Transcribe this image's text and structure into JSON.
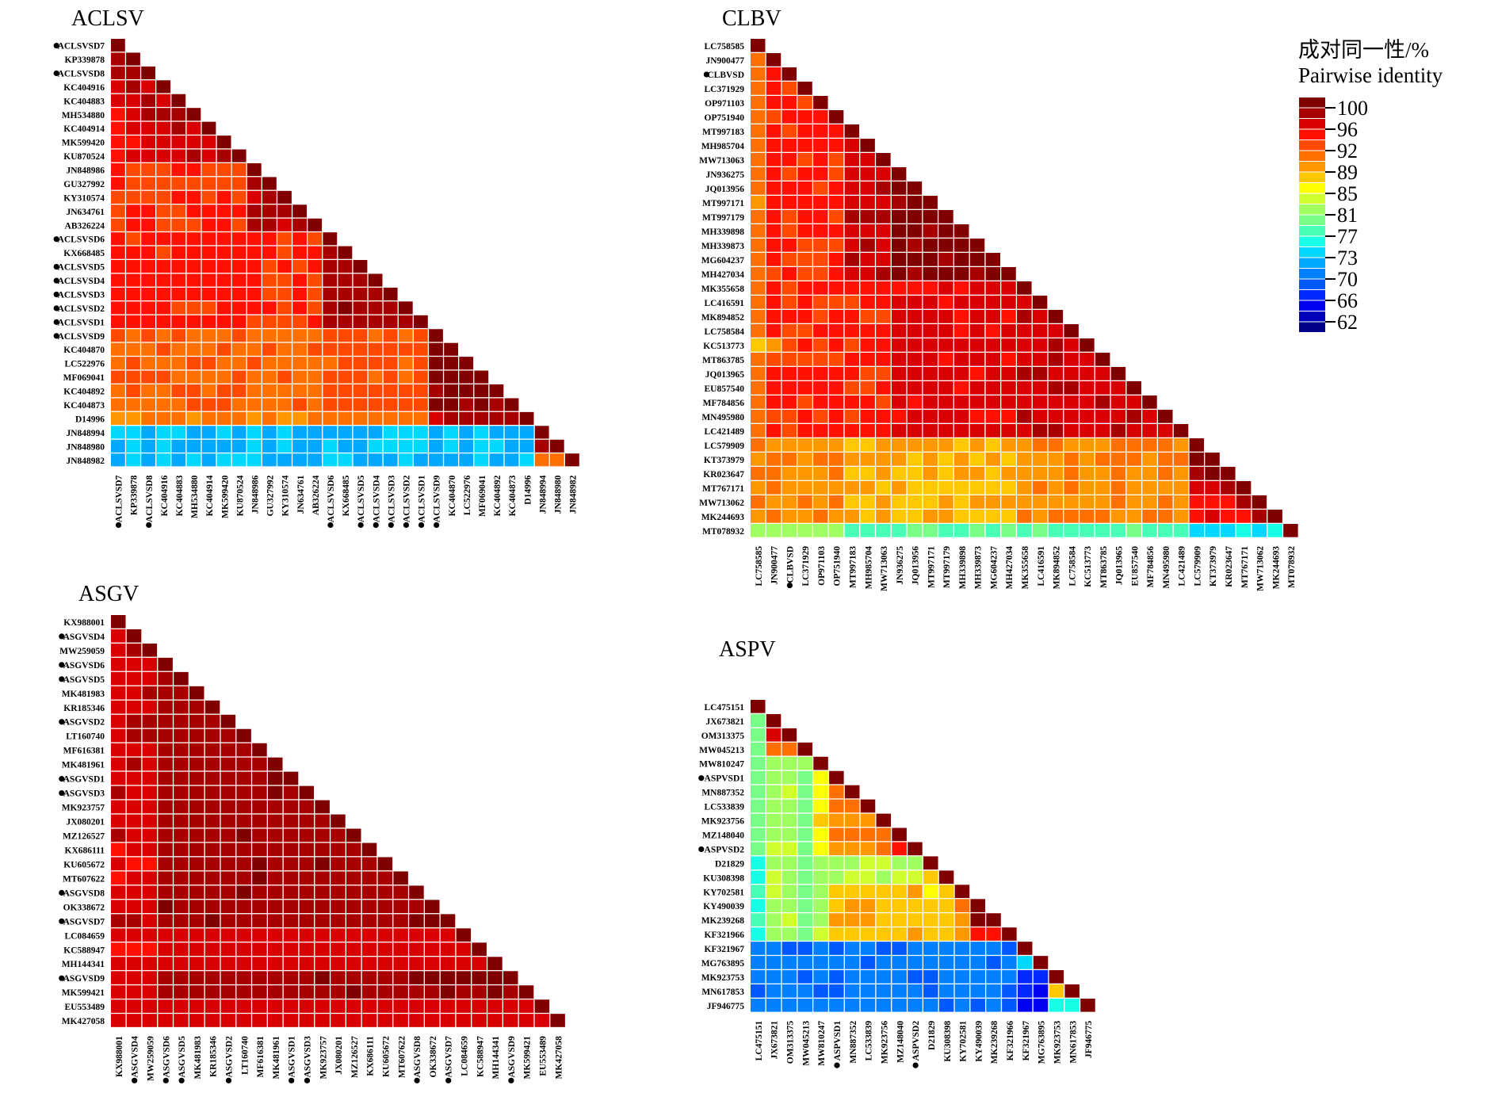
{
  "legend": {
    "title_cn": "成对同一性/%",
    "title_en": "Pairwise identity",
    "ticks": [
      "100",
      "96",
      "92",
      "89",
      "85",
      "81",
      "77",
      "73",
      "70",
      "66",
      "62"
    ],
    "colors": [
      "#800000",
      "#a80000",
      "#d80000",
      "#ff1000",
      "#ff4800",
      "#ff7000",
      "#ff9800",
      "#ffc800",
      "#ffff00",
      "#d0ff30",
      "#a0ff60",
      "#78ff88",
      "#48ffb8",
      "#18ffe8",
      "#00d8ff",
      "#00a8ff",
      "#0080ff",
      "#0058ff",
      "#0028ff",
      "#0000f0",
      "#0000b8",
      "#000088"
    ],
    "min": 60.5,
    "max": 100
  },
  "chart_data": [
    {
      "type": "heatmap",
      "title": "ACLSV",
      "labels": [
        "ACLSVSD7",
        "KP339878",
        "ACLSVSD8",
        "KC404916",
        "KC404883",
        "MH534880",
        "KC404914",
        "MK599420",
        "KU870524",
        "JN848986",
        "GU327992",
        "KY310574",
        "JN634761",
        "AB326224",
        "ACLSVSD6",
        "KX668485",
        "ACLSVSD5",
        "ACLSVSD4",
        "ACLSVSD3",
        "ACLSVSD2",
        "ACLSVSD1",
        "ACLSVSD9",
        "KC404870",
        "LC522976",
        "MF069041",
        "KC404892",
        "KC404873",
        "D14996",
        "JN848994",
        "JN848980",
        "JN848982"
      ],
      "marked": [
        "ACLSVSD7",
        "ACLSVSD8",
        "ACLSVSD6",
        "ACLSVSD5",
        "ACLSVSD4",
        "ACLSVSD3",
        "ACLSVSD2",
        "ACLSVSD1",
        "ACLSVSD9"
      ],
      "blocks": [
        [
          0,
          9,
          98
        ],
        [
          9,
          14,
          93
        ],
        [
          14,
          21,
          94
        ],
        [
          21,
          28,
          91
        ],
        [
          28,
          31,
          73
        ]
      ],
      "between": [
        [
          1,
          0,
          96
        ],
        [
          2,
          0,
          93
        ],
        [
          2,
          1,
          92
        ],
        [
          3,
          0,
          91
        ],
        [
          3,
          1,
          90
        ],
        [
          3,
          2,
          91
        ],
        [
          4,
          0,
          93
        ],
        [
          4,
          1,
          92
        ],
        [
          4,
          2,
          93
        ],
        [
          4,
          3,
          91
        ],
        [
          4,
          4,
          98
        ]
      ],
      "value_range": [
        60.5,
        100
      ]
    },
    {
      "type": "heatmap",
      "title": "CLBV",
      "labels": [
        "LC758585",
        "JN900477",
        "CLBVSD",
        "LC371929",
        "OP971103",
        "OP751940",
        "MT997183",
        "MH985704",
        "MW713063",
        "JN936275",
        "JQ013956",
        "MT997171",
        "MT997179",
        "MH339898",
        "MH339873",
        "MG604237",
        "MH427034",
        "MK355658",
        "LC416591",
        "MK894852",
        "LC758584",
        "KC513773",
        "MT863785",
        "JQ013965",
        "EU857540",
        "MF784856",
        "MN495980",
        "LC421489",
        "LC579909",
        "KT373979",
        "KR023647",
        "MT767171",
        "MW713062",
        "MK244693",
        "MT078932"
      ],
      "marked": [
        "CLBVSD"
      ],
      "value_range": [
        60.5,
        100
      ]
    },
    {
      "type": "heatmap",
      "title": "ASGV",
      "labels": [
        "KX988001",
        "ASGVSD4",
        "MW259059",
        "ASGVSD6",
        "ASGVSD5",
        "MK481983",
        "KR185346",
        "ASGVSD2",
        "LT160740",
        "MF616381",
        "MK481961",
        "ASGVSD1",
        "ASGVSD3",
        "MK923757",
        "JX080201",
        "MZ126527",
        "KX686111",
        "KU605672",
        "MT607622",
        "ASGVSD8",
        "OK338672",
        "ASGVSD7",
        "LC084659",
        "KC588947",
        "MH144341",
        "ASGVSD9",
        "MK599421",
        "EU553489",
        "MK427058"
      ],
      "marked": [
        "ASGVSD4",
        "ASGVSD6",
        "ASGVSD5",
        "ASGVSD2",
        "ASGVSD1",
        "ASGVSD3",
        "ASGVSD8",
        "ASGVSD7",
        "ASGVSD9"
      ],
      "value_range": [
        60.5,
        100
      ]
    },
    {
      "type": "heatmap",
      "title": "ASPV",
      "labels": [
        "LC475151",
        "JX673821",
        "OM313375",
        "MW045213",
        "MW810247",
        "ASPVSD1",
        "MN887352",
        "LC533839",
        "MK923756",
        "MZ148040",
        "ASPVSD2",
        "D21829",
        "KU308398",
        "KY702581",
        "KY490039",
        "MK239268",
        "KF321966",
        "KF321967",
        "MG763895",
        "MK923753",
        "MN617853",
        "JF946775"
      ],
      "marked": [
        "ASPVSD1",
        "ASPVSD2"
      ],
      "value_range": [
        60.5,
        100
      ]
    }
  ]
}
